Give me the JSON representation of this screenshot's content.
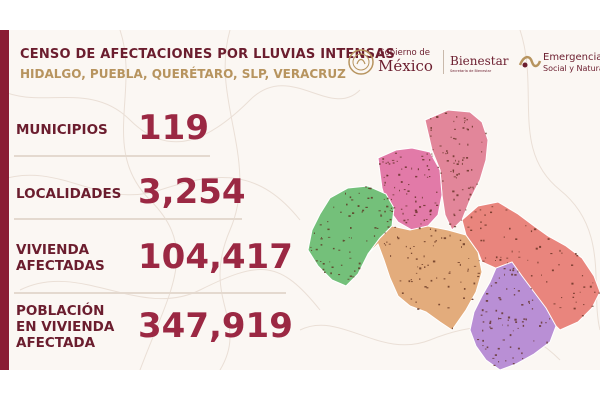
{
  "header": {
    "title": "CENSO DE AFECTACIONES POR LLUVIAS INTENSAS",
    "subtitle": "HIDALGO, PUEBLA, QUERÉTARO, SLP, VERACRUZ"
  },
  "logos": {
    "gobierno_top": "Gobierno de",
    "gobierno_main": "México",
    "bienestar": "Bienestar",
    "bienestar_sub": "Secretaría de Bienestar",
    "emergencia_main": "Emergencia",
    "emergencia_sub": "Social y Natural"
  },
  "stats": [
    {
      "label_lines": [
        "MUNICIPIOS"
      ],
      "value": "119"
    },
    {
      "label_lines": [
        "LOCALIDADES"
      ],
      "value": "3,254"
    },
    {
      "label_lines": [
        "VIVIENDA",
        "AFECTADAS"
      ],
      "value": "104,417"
    },
    {
      "label_lines": [
        "POBLACIÓN",
        "EN VIVIENDA",
        "AFECTADA"
      ],
      "value": "347,919"
    }
  ],
  "map": {
    "regions": [
      {
        "name": "San Luis Potosí / north",
        "color": "#e2869a"
      },
      {
        "name": "Hidalgo",
        "color": "#e27aa8"
      },
      {
        "name": "Querétaro",
        "color": "#74c07a"
      },
      {
        "name": "Central",
        "color": "#e3ac7c"
      },
      {
        "name": "Veracruz",
        "color": "#e9857d"
      },
      {
        "name": "Puebla",
        "color": "#b98fd5"
      }
    ],
    "marker_color": "#5a2a1a"
  }
}
